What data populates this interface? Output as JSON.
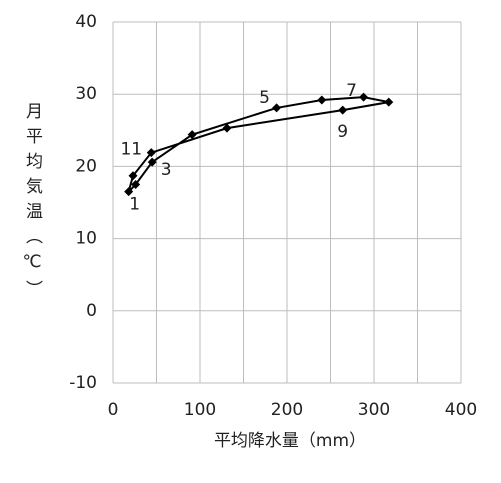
{
  "chart_data": {
    "type": "line",
    "x_label": "平均降水量（mm）",
    "y_label": "月平均気温（℃）",
    "series": [
      {
        "color": "#000000",
        "x": [
          18,
          26,
          45,
          91,
          188,
          240,
          288,
          317,
          264,
          131,
          44,
          23
        ],
        "values": [
          16.5,
          17.5,
          20.6,
          24.4,
          28.1,
          29.2,
          29.6,
          28.9,
          27.8,
          25.3,
          21.9,
          18.7
        ],
        "point_labels": [
          1,
          null,
          3,
          null,
          5,
          null,
          7,
          null,
          9,
          null,
          11,
          null
        ],
        "closed": true
      }
    ],
    "xlim": [
      0,
      400
    ],
    "xticks": [
      0,
      100,
      200,
      300,
      400
    ],
    "xgrid_step": 50,
    "ylim": [
      -10,
      40
    ],
    "yticks": [
      -10,
      0,
      10,
      20,
      30,
      40
    ],
    "grid": true
  }
}
